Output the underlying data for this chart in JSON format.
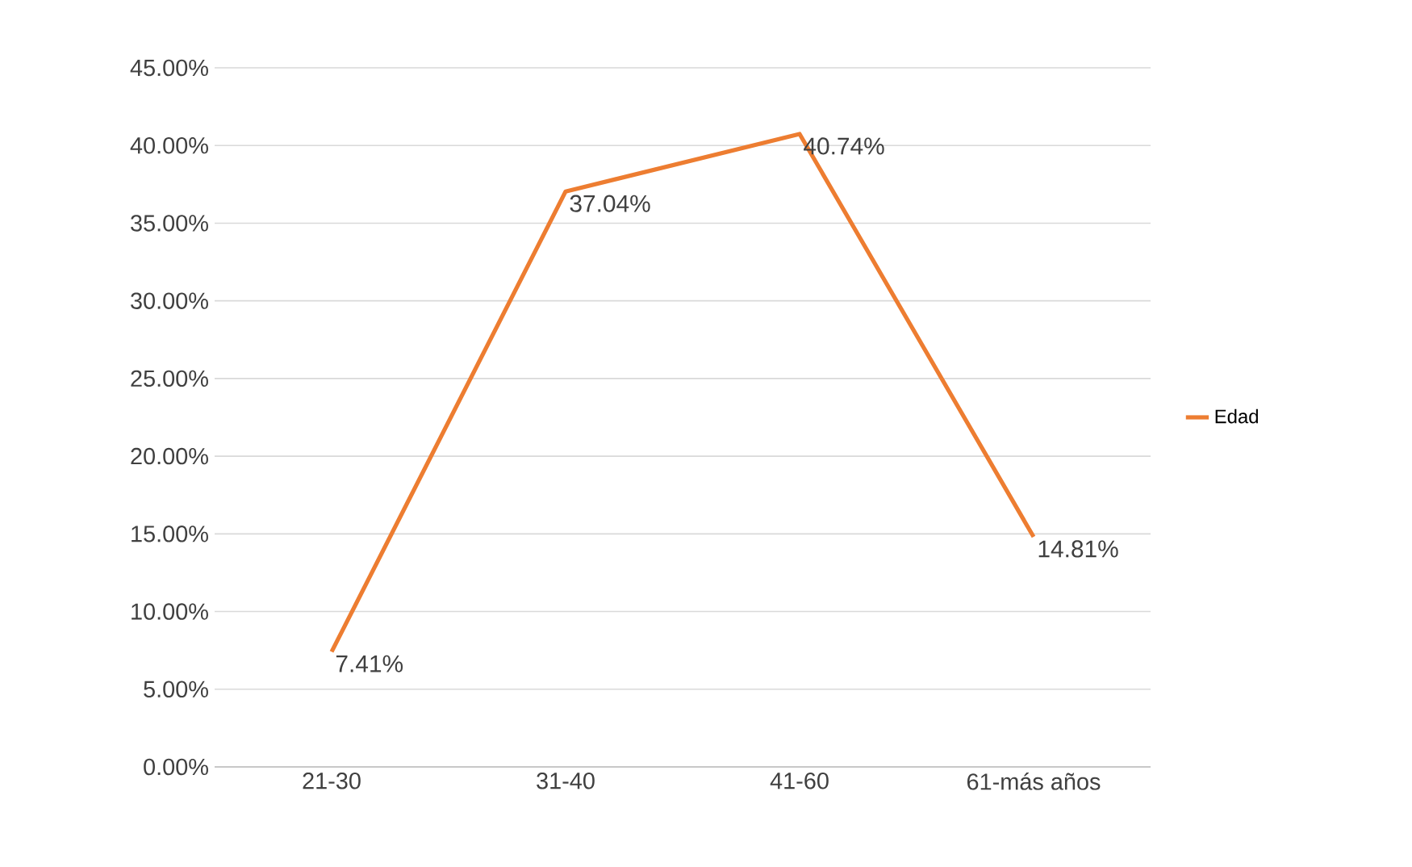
{
  "chart_data": {
    "type": "line",
    "categories": [
      "21-30",
      "31-40",
      "41-60",
      "61-más años"
    ],
    "series": [
      {
        "name": "Edad",
        "color": "#ed7d31",
        "values": [
          7.41,
          37.04,
          40.74,
          14.81
        ],
        "value_labels": [
          "7.41%",
          "37.04%",
          "40.74%",
          "14.81%"
        ]
      }
    ],
    "ylim": [
      0,
      45
    ],
    "yticks": [
      {
        "value": 0,
        "label": "0.00%"
      },
      {
        "value": 5,
        "label": "5.00%"
      },
      {
        "value": 10,
        "label": "10.00%"
      },
      {
        "value": 15,
        "label": "15.00%"
      },
      {
        "value": 20,
        "label": "20.00%"
      },
      {
        "value": 25,
        "label": "25.00%"
      },
      {
        "value": 30,
        "label": "30.00%"
      },
      {
        "value": 35,
        "label": "35.00%"
      },
      {
        "value": 40,
        "label": "40.00%"
      },
      {
        "value": 45,
        "label": "45.00%"
      }
    ],
    "grid": "y",
    "legend": "right",
    "marker": "none",
    "line_style": "solid"
  }
}
